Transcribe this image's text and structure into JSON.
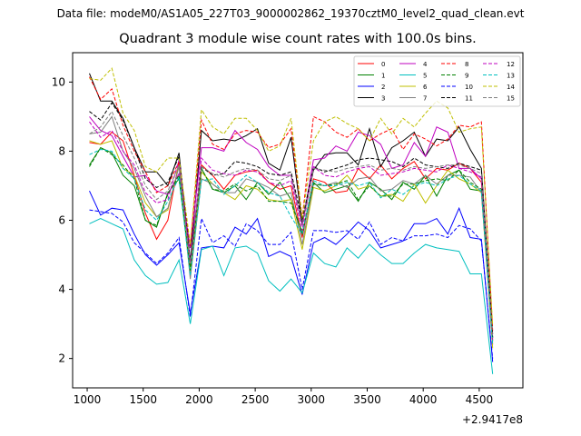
{
  "file_label": "Data file: modeM0/AS1A05_227T03_9000002862_19370cztM0_level2_quad_clean.evt",
  "chart_data": {
    "type": "line",
    "title": "Quadrant 3 module wise count rates with 100.0s bins.",
    "xlabel": "",
    "ylabel": "",
    "x_offset_label": "+2.9417e8",
    "xlim": [
      870,
      4890
    ],
    "ylim": [
      1.15,
      10.85
    ],
    "xticks": [
      1000,
      1500,
      2000,
      2500,
      3000,
      3500,
      4000,
      4500
    ],
    "yticks": [
      2,
      4,
      6,
      8,
      10
    ],
    "x": [
      1020,
      1120,
      1220,
      1320,
      1420,
      1520,
      1620,
      1720,
      1820,
      1920,
      2020,
      2120,
      2220,
      2320,
      2420,
      2520,
      2620,
      2720,
      2820,
      2920,
      3020,
      3120,
      3220,
      3320,
      3420,
      3520,
      3620,
      3720,
      3820,
      3920,
      4020,
      4120,
      4220,
      4320,
      4420,
      4520,
      4620
    ],
    "legend_position": "top-right",
    "series": [
      {
        "name": "0",
        "color": "#ff0000",
        "dash": "solid",
        "values": [
          8.25,
          8.2,
          8.55,
          8.3,
          7.3,
          6.2,
          5.45,
          6.0,
          7.7,
          4.6,
          7.6,
          7.3,
          6.9,
          7.3,
          7.4,
          7.45,
          7.1,
          6.9,
          7.0,
          5.5,
          7.2,
          7.1,
          6.8,
          6.85,
          7.5,
          7.2,
          7.6,
          7.2,
          7.5,
          7.7,
          7.2,
          7.5,
          7.45,
          7.65,
          7.5,
          7.1,
          2.5
        ]
      },
      {
        "name": "1",
        "color": "#008000",
        "dash": "solid",
        "values": [
          7.6,
          8.1,
          7.95,
          7.3,
          7.0,
          6.0,
          5.8,
          6.8,
          7.2,
          4.6,
          7.5,
          6.9,
          6.8,
          7.0,
          6.6,
          7.1,
          6.75,
          7.1,
          6.6,
          5.6,
          7.1,
          6.8,
          6.9,
          7.0,
          6.55,
          7.1,
          6.9,
          6.6,
          7.1,
          6.9,
          7.3,
          6.7,
          7.3,
          7.45,
          6.9,
          6.85,
          2.6
        ]
      },
      {
        "name": "2",
        "color": "#0000ff",
        "dash": "solid",
        "values": [
          6.85,
          6.15,
          6.35,
          6.3,
          5.6,
          5.0,
          4.7,
          5.0,
          5.35,
          3.3,
          5.2,
          5.25,
          5.2,
          5.8,
          5.6,
          6.05,
          4.95,
          5.1,
          4.95,
          3.85,
          5.35,
          5.5,
          5.3,
          5.6,
          5.95,
          5.7,
          5.2,
          5.3,
          5.4,
          5.9,
          5.9,
          6.05,
          5.6,
          6.35,
          5.5,
          5.45,
          1.9
        ]
      },
      {
        "name": "3",
        "color": "#000000",
        "dash": "solid",
        "values": [
          10.25,
          9.45,
          9.45,
          8.95,
          8.1,
          7.4,
          7.4,
          7.0,
          7.95,
          4.8,
          8.6,
          8.3,
          8.35,
          8.3,
          8.45,
          8.65,
          7.65,
          7.45,
          8.4,
          5.9,
          7.45,
          7.9,
          7.95,
          7.95,
          7.6,
          8.65,
          7.55,
          8.1,
          8.3,
          8.55,
          7.85,
          8.35,
          8.3,
          8.7,
          8.05,
          7.5,
          2.7
        ]
      },
      {
        "name": "4",
        "color": "#bf00bf",
        "dash": "solid",
        "values": [
          9.0,
          8.6,
          8.45,
          7.85,
          7.25,
          7.3,
          6.85,
          6.75,
          7.35,
          5.2,
          8.1,
          8.1,
          8.0,
          8.6,
          8.25,
          8.05,
          7.55,
          7.3,
          7.3,
          5.85,
          7.75,
          7.8,
          8.15,
          8.0,
          8.55,
          8.45,
          8.2,
          7.5,
          7.6,
          8.25,
          7.85,
          8.7,
          8.55,
          7.5,
          7.5,
          7.2,
          2.4
        ]
      },
      {
        "name": "5",
        "color": "#00bfbf",
        "dash": "solid",
        "values": [
          5.9,
          6.05,
          5.9,
          5.75,
          4.85,
          4.4,
          4.15,
          4.2,
          4.85,
          3.0,
          5.15,
          5.25,
          4.4,
          5.2,
          5.25,
          5.05,
          4.25,
          3.95,
          4.3,
          3.9,
          5.05,
          4.75,
          4.65,
          5.2,
          4.9,
          5.3,
          5.0,
          4.75,
          4.75,
          5.05,
          5.3,
          5.2,
          5.15,
          5.1,
          4.45,
          4.45,
          1.55
        ]
      },
      {
        "name": "6",
        "color": "#bfbf00",
        "dash": "solid",
        "values": [
          8.3,
          8.2,
          8.3,
          7.5,
          7.3,
          6.5,
          6.1,
          6.3,
          7.6,
          4.5,
          7.4,
          7.05,
          6.8,
          6.6,
          7.0,
          6.9,
          6.6,
          6.55,
          6.6,
          5.15,
          6.95,
          6.85,
          7.0,
          7.3,
          6.9,
          7.0,
          6.7,
          6.75,
          6.55,
          7.05,
          6.5,
          7.0,
          7.45,
          7.2,
          7.05,
          6.8,
          2.3
        ]
      },
      {
        "name": "7",
        "color": "#808080",
        "dash": "solid",
        "values": [
          8.5,
          8.55,
          9.0,
          8.0,
          7.5,
          6.7,
          6.1,
          6.35,
          7.55,
          4.3,
          7.2,
          7.05,
          6.8,
          6.8,
          7.2,
          7.1,
          6.95,
          6.7,
          6.8,
          5.3,
          7.05,
          7.0,
          7.1,
          6.95,
          7.2,
          7.25,
          6.85,
          6.9,
          7.15,
          7.05,
          7.3,
          7.05,
          7.3,
          7.3,
          7.25,
          6.8,
          2.5
        ]
      },
      {
        "name": "8",
        "color": "#ff0000",
        "dash": "dashed",
        "values": [
          10.15,
          9.5,
          9.8,
          8.75,
          8.0,
          7.4,
          6.8,
          7.0,
          7.7,
          5.25,
          8.9,
          8.2,
          8.05,
          8.5,
          8.6,
          8.55,
          8.1,
          8.2,
          8.65,
          6.05,
          9.0,
          8.85,
          8.55,
          8.4,
          8.65,
          8.3,
          8.5,
          8.65,
          8.05,
          8.5,
          8.35,
          8.15,
          8.35,
          8.75,
          8.7,
          8.85,
          2.8
        ]
      },
      {
        "name": "9",
        "color": "#008000",
        "dash": "dashed",
        "values": [
          7.55,
          8.1,
          7.9,
          7.6,
          7.2,
          6.0,
          5.85,
          6.75,
          7.3,
          4.55,
          7.5,
          6.9,
          6.85,
          7.05,
          6.85,
          7.0,
          6.55,
          6.55,
          6.5,
          5.65,
          7.05,
          7.0,
          7.05,
          7.15,
          6.6,
          7.0,
          6.7,
          6.7,
          7.05,
          7.05,
          7.15,
          7.2,
          7.15,
          7.45,
          7.1,
          6.9,
          2.55
        ]
      },
      {
        "name": "10",
        "color": "#0000ff",
        "dash": "dashed",
        "values": [
          6.3,
          6.25,
          6.2,
          5.95,
          5.35,
          5.05,
          4.75,
          5.05,
          5.5,
          3.2,
          6.05,
          5.35,
          5.55,
          5.25,
          5.9,
          5.7,
          5.3,
          5.3,
          5.65,
          4.0,
          5.7,
          5.7,
          5.65,
          5.7,
          5.45,
          5.95,
          5.3,
          5.5,
          5.4,
          5.55,
          5.55,
          5.6,
          5.5,
          5.85,
          5.75,
          5.4,
          2.0
        ]
      },
      {
        "name": "11",
        "color": "#000000",
        "dash": "dashed",
        "values": [
          9.15,
          8.9,
          9.4,
          8.9,
          8.1,
          7.2,
          6.95,
          7.1,
          7.85,
          4.85,
          7.55,
          7.3,
          7.35,
          7.7,
          7.65,
          7.55,
          7.35,
          7.3,
          7.4,
          6.0,
          7.55,
          7.4,
          7.5,
          7.6,
          7.75,
          7.8,
          7.75,
          7.7,
          7.55,
          7.8,
          7.6,
          7.55,
          7.5,
          7.65,
          7.55,
          7.45,
          2.6
        ]
      },
      {
        "name": "12",
        "color": "#bf00bf",
        "dash": "dashed",
        "values": [
          8.85,
          8.4,
          8.6,
          8.0,
          7.6,
          6.8,
          6.5,
          6.6,
          7.75,
          4.75,
          7.8,
          7.45,
          7.35,
          7.3,
          7.45,
          7.4,
          7.1,
          7.0,
          7.15,
          5.7,
          7.55,
          7.3,
          7.25,
          7.4,
          7.5,
          7.55,
          7.3,
          7.35,
          7.4,
          7.5,
          7.45,
          7.4,
          7.6,
          7.5,
          7.4,
          7.25,
          2.55
        ]
      },
      {
        "name": "13",
        "color": "#00bfbf",
        "dash": "dashed",
        "values": [
          7.9,
          8.05,
          8.0,
          7.5,
          7.2,
          6.3,
          6.0,
          6.55,
          7.25,
          4.4,
          7.15,
          7.2,
          6.75,
          7.0,
          7.3,
          7.1,
          6.8,
          6.7,
          6.1,
          5.6,
          7.15,
          7.0,
          7.0,
          7.1,
          7.0,
          7.1,
          6.65,
          6.9,
          6.75,
          7.0,
          7.1,
          7.0,
          7.2,
          7.3,
          7.05,
          6.85,
          2.4
        ]
      },
      {
        "name": "14",
        "color": "#bfbf00",
        "dash": "dashed",
        "values": [
          10.1,
          10.05,
          10.4,
          9.1,
          8.6,
          7.55,
          7.4,
          7.8,
          7.8,
          5.3,
          9.2,
          8.7,
          8.5,
          8.95,
          8.95,
          8.6,
          8.0,
          8.15,
          8.95,
          6.05,
          8.3,
          8.85,
          9.0,
          8.8,
          8.65,
          8.3,
          8.95,
          8.5,
          8.95,
          8.7,
          9.1,
          9.45,
          9.25,
          8.55,
          8.65,
          8.7,
          2.95
        ]
      },
      {
        "name": "15",
        "color": "#808080",
        "dash": "dashed",
        "values": [
          8.5,
          8.7,
          9.15,
          8.45,
          7.8,
          7.0,
          6.6,
          6.85,
          7.6,
          4.75,
          7.55,
          7.35,
          7.25,
          7.4,
          7.5,
          7.45,
          7.2,
          7.15,
          7.3,
          5.85,
          7.5,
          7.45,
          7.4,
          7.5,
          7.55,
          7.6,
          7.45,
          7.5,
          7.45,
          7.55,
          7.5,
          7.55,
          7.6,
          7.6,
          7.5,
          7.35,
          2.6
        ]
      }
    ]
  }
}
